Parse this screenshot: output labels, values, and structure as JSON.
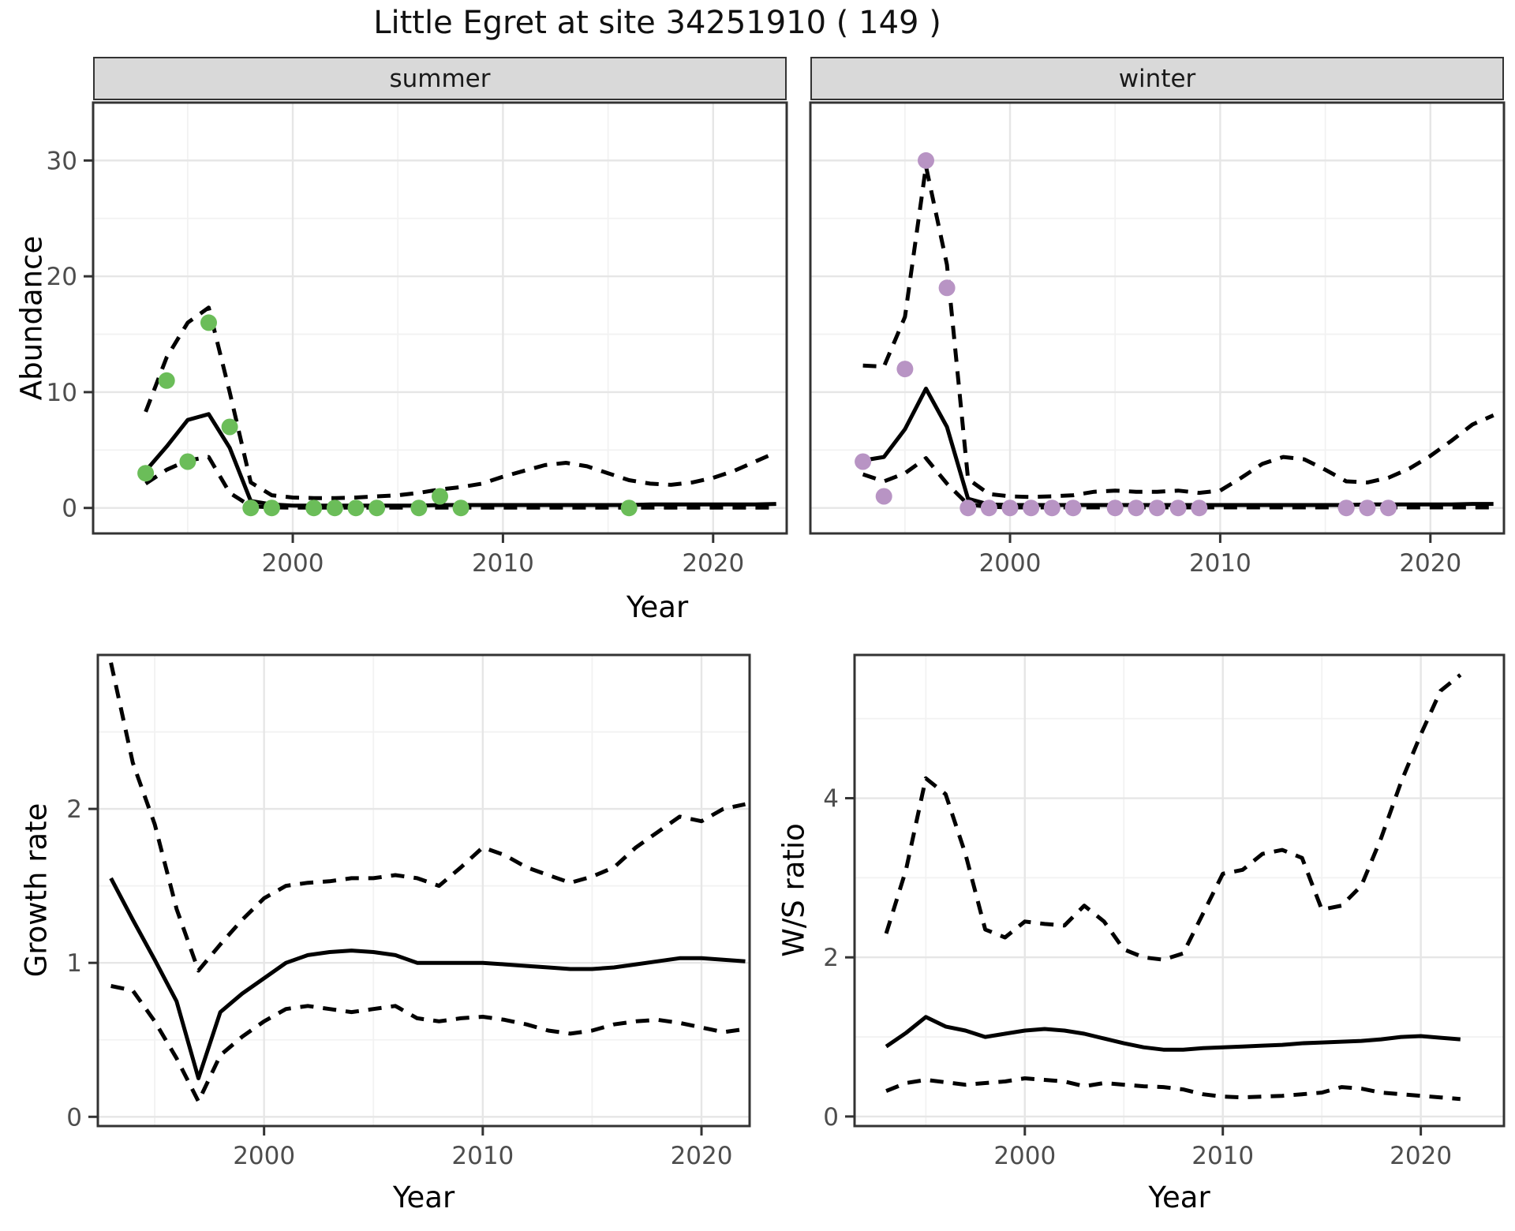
{
  "title": "Little Egret at site 34251910 ( 149 )",
  "colors": {
    "summer_point": "#6bbd59",
    "winter_point": "#b894c4",
    "line": "#000000",
    "strip_bg": "#d9d9d9",
    "grid_major": "#e6e6e6",
    "grid_minor": "#f2f2f2",
    "axis_text": "#4d4d4d",
    "panel_border": "#333333"
  },
  "chart_data": [
    {
      "id": "abundance-summer",
      "type": "line",
      "facet_label": "summer",
      "ylabel": "Abundance",
      "xlabel": "Year",
      "xlim": [
        1990.5,
        2023.5
      ],
      "ylim": [
        -2.2,
        35
      ],
      "xticks": [
        2000,
        2010,
        2020
      ],
      "xtick_labels": [
        "2000",
        "2010",
        "2020"
      ],
      "xticks_minor": [
        1995,
        2005,
        2015
      ],
      "yticks": [
        0,
        10,
        20,
        30
      ],
      "ytick_labels": [
        "0",
        "10",
        "20",
        "30"
      ],
      "yticks_minor": [
        5,
        15,
        25
      ],
      "grid": true,
      "legend": "none",
      "series": [
        {
          "name": "upper-ci",
          "style": "dashed",
          "x": [
            1993,
            1994,
            1995,
            1996,
            1997,
            1998,
            1999,
            2000,
            2001,
            2002,
            2003,
            2004,
            2005,
            2006,
            2007,
            2008,
            2009,
            2010,
            2011,
            2012,
            2013,
            2014,
            2015,
            2016,
            2017,
            2018,
            2019,
            2020,
            2021,
            2022,
            2023
          ],
          "y": [
            8.3,
            13,
            16,
            17.3,
            10,
            2.2,
            1.1,
            0.9,
            0.85,
            0.85,
            0.9,
            1.0,
            1.1,
            1.3,
            1.6,
            1.8,
            2.1,
            2.7,
            3.2,
            3.7,
            3.9,
            3.6,
            3.0,
            2.4,
            2.1,
            2.0,
            2.2,
            2.6,
            3.2,
            4.0,
            4.8
          ]
        },
        {
          "name": "lower-ci",
          "style": "dashed",
          "x": [
            1993,
            1994,
            1995,
            1996,
            1997,
            1998,
            1999,
            2000,
            2001,
            2002,
            2003,
            2004,
            2005,
            2006,
            2007,
            2008,
            2009,
            2010,
            2011,
            2012,
            2013,
            2014,
            2015,
            2016,
            2017,
            2018,
            2019,
            2020,
            2021,
            2022,
            2023
          ],
          "y": [
            2.1,
            3.3,
            4.1,
            4.4,
            1.3,
            0.15,
            0.05,
            0.03,
            0.03,
            0.03,
            0.03,
            0.03,
            0.03,
            0.03,
            0.03,
            0.03,
            0.03,
            0.03,
            0.03,
            0.03,
            0.03,
            0.03,
            0.03,
            0.03,
            0.03,
            0.03,
            0.03,
            0.03,
            0.03,
            0.03,
            0.03
          ]
        },
        {
          "name": "fit",
          "style": "solid",
          "x": [
            1993,
            1994,
            1995,
            1996,
            1997,
            1998,
            1999,
            2000,
            2001,
            2002,
            2003,
            2004,
            2005,
            2006,
            2007,
            2008,
            2009,
            2010,
            2011,
            2012,
            2013,
            2014,
            2015,
            2016,
            2017,
            2018,
            2019,
            2020,
            2021,
            2022,
            2023
          ],
          "y": [
            3.2,
            5.3,
            7.6,
            8.1,
            5.2,
            0.6,
            0.3,
            0.2,
            0.2,
            0.2,
            0.2,
            0.2,
            0.2,
            0.2,
            0.25,
            0.25,
            0.25,
            0.25,
            0.25,
            0.25,
            0.25,
            0.25,
            0.25,
            0.25,
            0.3,
            0.3,
            0.3,
            0.3,
            0.3,
            0.3,
            0.35
          ]
        },
        {
          "name": "observed",
          "style": "points",
          "color": "#6bbd59",
          "x": [
            1993,
            1994,
            1995,
            1996,
            1997,
            1998,
            1999,
            2001,
            2002,
            2003,
            2004,
            2006,
            2007,
            2008,
            2016
          ],
          "y": [
            3,
            11,
            4,
            16,
            7,
            0,
            0,
            0,
            0,
            0,
            0,
            0,
            1,
            0,
            0
          ]
        }
      ]
    },
    {
      "id": "abundance-winter",
      "type": "line",
      "facet_label": "winter",
      "ylabel": "Abundance",
      "xlabel": "Year",
      "xlim": [
        1990.5,
        2023.5
      ],
      "ylim": [
        -2.2,
        35
      ],
      "xticks": [
        2000,
        2010,
        2020
      ],
      "xtick_labels": [
        "2000",
        "2010",
        "2020"
      ],
      "xticks_minor": [
        1995,
        2005,
        2015
      ],
      "yticks": [
        0,
        10,
        20,
        30
      ],
      "ytick_labels": [
        "0",
        "10",
        "20",
        "30"
      ],
      "yticks_minor": [
        5,
        15,
        25
      ],
      "grid": true,
      "legend": "none",
      "series": [
        {
          "name": "upper-ci",
          "style": "dashed",
          "x": [
            1993,
            1994,
            1995,
            1996,
            1997,
            1998,
            1999,
            2000,
            2001,
            2002,
            2003,
            2004,
            2005,
            2006,
            2007,
            2008,
            2009,
            2010,
            2011,
            2012,
            2013,
            2014,
            2015,
            2016,
            2017,
            2018,
            2019,
            2020,
            2021,
            2022,
            2023
          ],
          "y": [
            12.3,
            12.2,
            16.5,
            29.5,
            21,
            2.5,
            1.2,
            1.0,
            0.95,
            1.0,
            1.1,
            1.4,
            1.5,
            1.4,
            1.4,
            1.5,
            1.3,
            1.5,
            2.6,
            3.8,
            4.4,
            4.2,
            3.3,
            2.3,
            2.2,
            2.6,
            3.4,
            4.5,
            5.8,
            7.2,
            8.0
          ]
        },
        {
          "name": "lower-ci",
          "style": "dashed",
          "x": [
            1993,
            1994,
            1995,
            1996,
            1997,
            1998,
            1999,
            2000,
            2001,
            2002,
            2003,
            2004,
            2005,
            2006,
            2007,
            2008,
            2009,
            2010,
            2011,
            2012,
            2013,
            2014,
            2015,
            2016,
            2017,
            2018,
            2019,
            2020,
            2021,
            2022,
            2023
          ],
          "y": [
            2.9,
            2.3,
            3.0,
            4.3,
            2.1,
            0.3,
            0.1,
            0.05,
            0.05,
            0.05,
            0.05,
            0.05,
            0.05,
            0.05,
            0.05,
            0.05,
            0.05,
            0.05,
            0.05,
            0.05,
            0.05,
            0.05,
            0.05,
            0.05,
            0.05,
            0.05,
            0.05,
            0.05,
            0.05,
            0.05,
            0.05
          ]
        },
        {
          "name": "fit",
          "style": "solid",
          "x": [
            1993,
            1994,
            1995,
            1996,
            1997,
            1998,
            1999,
            2000,
            2001,
            2002,
            2003,
            2004,
            2005,
            2006,
            2007,
            2008,
            2009,
            2010,
            2011,
            2012,
            2013,
            2014,
            2015,
            2016,
            2017,
            2018,
            2019,
            2020,
            2021,
            2022,
            2023
          ],
          "y": [
            4.1,
            4.4,
            6.8,
            10.3,
            7.0,
            0.8,
            0.3,
            0.25,
            0.25,
            0.25,
            0.25,
            0.25,
            0.25,
            0.25,
            0.25,
            0.25,
            0.25,
            0.25,
            0.25,
            0.25,
            0.25,
            0.25,
            0.25,
            0.25,
            0.3,
            0.3,
            0.3,
            0.3,
            0.3,
            0.35,
            0.35
          ]
        },
        {
          "name": "observed",
          "style": "points",
          "color": "#b894c4",
          "x": [
            1993,
            1994,
            1995,
            1996,
            1997,
            1998,
            1999,
            2000,
            2001,
            2002,
            2003,
            2005,
            2006,
            2007,
            2008,
            2009,
            2016,
            2017,
            2018
          ],
          "y": [
            4,
            1,
            12,
            30,
            19,
            0,
            0,
            0,
            0,
            0,
            0,
            0,
            0,
            0,
            0,
            0,
            0,
            0,
            0
          ]
        }
      ]
    },
    {
      "id": "growth-rate",
      "type": "line",
      "facet_label": "",
      "ylabel": "Growth rate",
      "xlabel": "Year",
      "xlim": [
        1992.4,
        2022.2
      ],
      "ylim": [
        -0.06,
        3.0
      ],
      "xticks": [
        2000,
        2010,
        2020
      ],
      "xtick_labels": [
        "2000",
        "2010",
        "2020"
      ],
      "xticks_minor": [
        1995,
        2005,
        2015
      ],
      "yticks": [
        0,
        1,
        2
      ],
      "ytick_labels": [
        "0",
        "1",
        "2"
      ],
      "yticks_minor": [
        0.5,
        1.5,
        2.5
      ],
      "grid": true,
      "legend": "none",
      "series": [
        {
          "name": "upper-ci",
          "style": "dashed",
          "x": [
            1993,
            1994,
            1995,
            1996,
            1997,
            1998,
            1999,
            2000,
            2001,
            2002,
            2003,
            2004,
            2005,
            2006,
            2007,
            2008,
            2009,
            2010,
            2011,
            2012,
            2013,
            2014,
            2015,
            2016,
            2017,
            2018,
            2019,
            2020,
            2021,
            2022
          ],
          "y": [
            2.95,
            2.3,
            1.9,
            1.35,
            0.95,
            1.12,
            1.28,
            1.42,
            1.5,
            1.52,
            1.53,
            1.55,
            1.55,
            1.57,
            1.55,
            1.5,
            1.62,
            1.75,
            1.7,
            1.62,
            1.57,
            1.52,
            1.56,
            1.62,
            1.75,
            1.85,
            1.95,
            1.92,
            2.0,
            2.03
          ]
        },
        {
          "name": "lower-ci",
          "style": "dashed",
          "x": [
            1993,
            1994,
            1995,
            1996,
            1997,
            1998,
            1999,
            2000,
            2001,
            2002,
            2003,
            2004,
            2005,
            2006,
            2007,
            2008,
            2009,
            2010,
            2011,
            2012,
            2013,
            2014,
            2015,
            2016,
            2017,
            2018,
            2019,
            2020,
            2021,
            2022
          ],
          "y": [
            0.85,
            0.82,
            0.62,
            0.38,
            0.1,
            0.4,
            0.52,
            0.62,
            0.7,
            0.72,
            0.7,
            0.68,
            0.7,
            0.72,
            0.64,
            0.62,
            0.64,
            0.65,
            0.63,
            0.6,
            0.56,
            0.54,
            0.56,
            0.6,
            0.62,
            0.63,
            0.61,
            0.58,
            0.55,
            0.57
          ]
        },
        {
          "name": "fit",
          "style": "solid",
          "x": [
            1993,
            1994,
            1995,
            1996,
            1997,
            1998,
            1999,
            2000,
            2001,
            2002,
            2003,
            2004,
            2005,
            2006,
            2007,
            2008,
            2009,
            2010,
            2011,
            2012,
            2013,
            2014,
            2015,
            2016,
            2017,
            2018,
            2019,
            2020,
            2021,
            2022
          ],
          "y": [
            1.55,
            1.28,
            1.02,
            0.75,
            0.25,
            0.68,
            0.8,
            0.9,
            1.0,
            1.05,
            1.07,
            1.08,
            1.07,
            1.05,
            1.0,
            1.0,
            1.0,
            1.0,
            0.99,
            0.98,
            0.97,
            0.96,
            0.96,
            0.97,
            0.99,
            1.01,
            1.03,
            1.03,
            1.02,
            1.01
          ]
        }
      ]
    },
    {
      "id": "ws-ratio",
      "type": "line",
      "facet_label": "",
      "ylabel": "W/S ratio",
      "xlabel": "Year",
      "xlim": [
        1991.4,
        2024.2
      ],
      "ylim": [
        -0.12,
        5.8
      ],
      "xticks": [
        2000,
        2010,
        2020
      ],
      "xtick_labels": [
        "2000",
        "2010",
        "2020"
      ],
      "xticks_minor": [
        1995,
        2005,
        2015
      ],
      "yticks": [
        0,
        2,
        4
      ],
      "ytick_labels": [
        "0",
        "2",
        "4"
      ],
      "yticks_minor": [
        1,
        3,
        5
      ],
      "grid": true,
      "legend": "none",
      "series": [
        {
          "name": "upper-ci",
          "style": "dashed",
          "x": [
            1993,
            1994,
            1995,
            1996,
            1997,
            1998,
            1999,
            2000,
            2001,
            2002,
            2003,
            2004,
            2005,
            2006,
            2007,
            2008,
            2009,
            2010,
            2011,
            2012,
            2013,
            2014,
            2015,
            2016,
            2017,
            2018,
            2019,
            2020,
            2021,
            2022
          ],
          "y": [
            2.3,
            3.1,
            4.25,
            4.05,
            3.3,
            2.35,
            2.25,
            2.45,
            2.42,
            2.4,
            2.65,
            2.45,
            2.1,
            2.0,
            1.97,
            2.05,
            2.55,
            3.05,
            3.1,
            3.3,
            3.35,
            3.25,
            2.6,
            2.65,
            2.9,
            3.5,
            4.2,
            4.8,
            5.35,
            5.55
          ]
        },
        {
          "name": "lower-ci",
          "style": "dashed",
          "x": [
            1993,
            1994,
            1995,
            1996,
            1997,
            1998,
            1999,
            2000,
            2001,
            2002,
            2003,
            2004,
            2005,
            2006,
            2007,
            2008,
            2009,
            2010,
            2011,
            2012,
            2013,
            2014,
            2015,
            2016,
            2017,
            2018,
            2019,
            2020,
            2021,
            2022
          ],
          "y": [
            0.32,
            0.42,
            0.46,
            0.43,
            0.4,
            0.42,
            0.44,
            0.48,
            0.46,
            0.44,
            0.38,
            0.42,
            0.4,
            0.38,
            0.37,
            0.34,
            0.28,
            0.25,
            0.24,
            0.25,
            0.26,
            0.28,
            0.3,
            0.37,
            0.35,
            0.3,
            0.28,
            0.26,
            0.24,
            0.22
          ]
        },
        {
          "name": "fit",
          "style": "solid",
          "x": [
            1993,
            1994,
            1995,
            1996,
            1997,
            1998,
            1999,
            2000,
            2001,
            2002,
            2003,
            2004,
            2005,
            2006,
            2007,
            2008,
            2009,
            2010,
            2011,
            2012,
            2013,
            2014,
            2015,
            2016,
            2017,
            2018,
            2019,
            2020,
            2021,
            2022
          ],
          "y": [
            0.88,
            1.05,
            1.25,
            1.13,
            1.08,
            1.0,
            1.04,
            1.08,
            1.1,
            1.08,
            1.04,
            0.98,
            0.92,
            0.87,
            0.84,
            0.84,
            0.86,
            0.87,
            0.88,
            0.89,
            0.9,
            0.92,
            0.93,
            0.94,
            0.95,
            0.97,
            1.0,
            1.01,
            0.99,
            0.97
          ]
        }
      ]
    }
  ]
}
